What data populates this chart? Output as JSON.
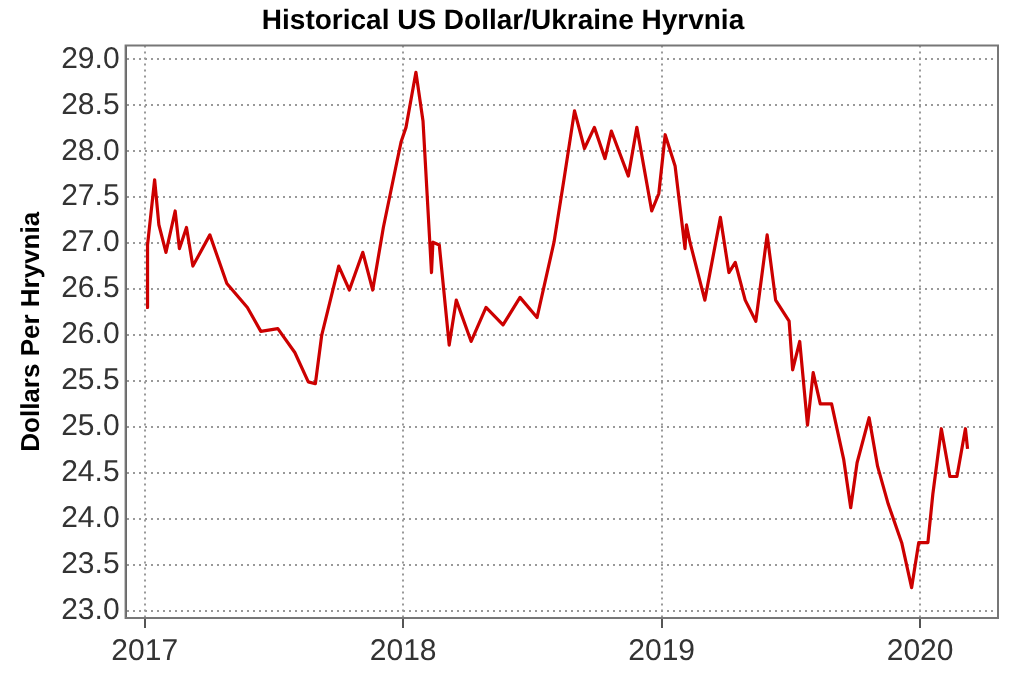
{
  "chart_data": {
    "type": "line",
    "title": "Historical US Dollar/Ukraine Hyrvnia",
    "ylabel": "Dollars Per Hryvnia",
    "x": [
      "2017-01-03",
      "2017-01-05",
      "2017-01-15",
      "2017-01-21",
      "2017-01-31",
      "2017-02-13",
      "2017-02-19",
      "2017-03-01",
      "2017-03-10",
      "2017-04-03",
      "2017-04-27",
      "2017-05-26",
      "2017-06-14",
      "2017-07-08",
      "2017-08-01",
      "2017-08-20",
      "2017-08-30",
      "2017-09-08",
      "2017-10-02",
      "2017-10-17",
      "2017-11-05",
      "2017-11-19",
      "2017-12-04",
      "2017-12-23",
      "2017-12-29",
      "2018-01-05",
      "2018-01-19",
      "2018-01-29",
      "2018-02-10",
      "2018-02-12",
      "2018-02-21",
      "2018-03-07",
      "2018-03-17",
      "2018-04-07",
      "2018-04-28",
      "2018-05-22",
      "2018-06-15",
      "2018-07-09",
      "2018-08-02",
      "2018-08-16",
      "2018-08-31",
      "2018-09-14",
      "2018-09-28",
      "2018-10-13",
      "2018-10-22",
      "2018-11-15",
      "2018-11-27",
      "2018-12-18",
      "2018-12-28",
      "2019-01-06",
      "2019-01-20",
      "2019-02-03",
      "2019-02-05",
      "2019-02-10",
      "2019-03-03",
      "2019-03-25",
      "2019-04-06",
      "2019-04-15",
      "2019-04-29",
      "2019-05-14",
      "2019-05-30",
      "2019-06-11",
      "2019-06-30",
      "2019-07-05",
      "2019-07-15",
      "2019-07-26",
      "2019-08-03",
      "2019-08-13",
      "2019-08-29",
      "2019-09-15",
      "2019-09-25",
      "2019-10-04",
      "2019-10-21",
      "2019-11-02",
      "2019-11-17",
      "2019-12-06",
      "2019-12-20",
      "2019-12-30",
      "2020-01-12",
      "2020-01-19",
      "2020-01-31",
      "2020-02-12",
      "2020-02-22",
      "2020-03-05",
      "2020-03-08"
    ],
    "series": [
      {
        "color": "#cc0000",
        "values": [
          26.3,
          26.98,
          27.69,
          27.2,
          26.9,
          27.35,
          26.94,
          27.17,
          26.75,
          27.09,
          26.56,
          26.3,
          26.04,
          26.07,
          25.81,
          25.49,
          25.47,
          26.0,
          26.75,
          26.49,
          26.9,
          26.49,
          27.17,
          27.88,
          28.1,
          28.26,
          28.86,
          28.33,
          26.68,
          27.01,
          26.98,
          25.89,
          26.38,
          25.93,
          26.3,
          26.11,
          26.41,
          26.19,
          27.01,
          27.69,
          28.44,
          28.03,
          28.26,
          27.92,
          28.22,
          27.73,
          28.26,
          27.35,
          27.54,
          28.18,
          27.84,
          26.94,
          27.2,
          27.01,
          26.38,
          27.28,
          26.68,
          26.79,
          26.38,
          26.15,
          27.09,
          26.38,
          26.15,
          25.62,
          25.93,
          25.02,
          25.59,
          25.25,
          25.25,
          24.65,
          24.12,
          24.61,
          25.1,
          24.57,
          24.16,
          23.74,
          23.25,
          23.74,
          23.74,
          24.27,
          24.98,
          24.46,
          24.46,
          24.98,
          24.76
        ]
      }
    ],
    "xlim": [
      "2016-12-05",
      "2020-04-20"
    ],
    "xticks": [
      "2017",
      "2018",
      "2019",
      "2020"
    ],
    "ylim": [
      22.92,
      29.15
    ],
    "yticks": [
      {
        "value": 23,
        "label": "23.0"
      },
      23.5,
      {
        "value": 24,
        "label": "24.0"
      },
      24.5,
      {
        "value": 25,
        "label": "25.0"
      },
      25.5,
      {
        "value": 26,
        "label": "26.0"
      },
      26.5,
      {
        "value": 27,
        "label": "27.0"
      },
      27.5,
      {
        "value": 28,
        "label": "28.0"
      },
      28.5,
      {
        "value": 29,
        "label": "29.0"
      }
    ],
    "grid": true,
    "line_style": "solid",
    "marker": "none"
  }
}
